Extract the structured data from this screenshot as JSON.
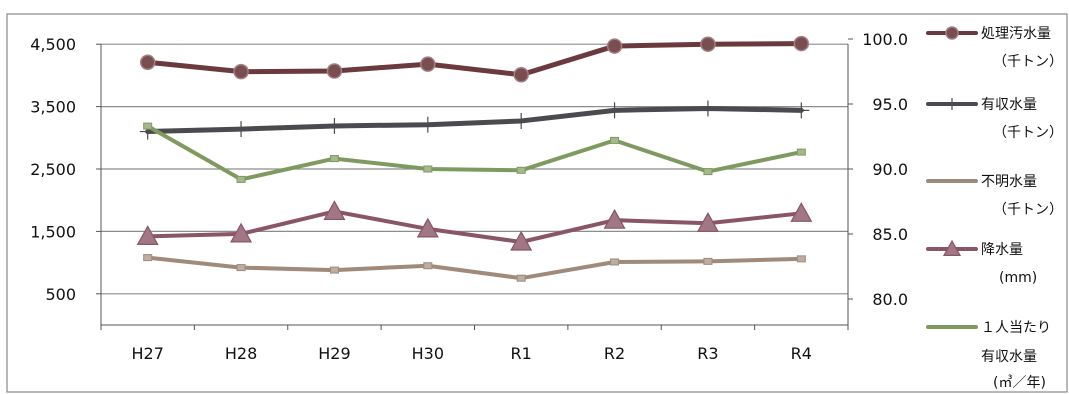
{
  "chart_data": {
    "type": "line",
    "categories": [
      "H27",
      "H28",
      "H29",
      "H30",
      "R1",
      "R2",
      "R3",
      "R4"
    ],
    "y_left": {
      "ticks": [
        "500",
        "1,500",
        "2,500",
        "3,500",
        "4,500"
      ],
      "ylim": [
        0,
        5000
      ]
    },
    "y_right": {
      "ticks": [
        "80.0",
        "85.0",
        "90.0",
        "95.0",
        "100.0"
      ],
      "ylim": [
        78.0,
        102.0
      ]
    },
    "grid": {
      "horizontal": true,
      "vertical": false
    },
    "legend_position": "right",
    "series": [
      {
        "name": "処理汚水量",
        "unit": "（千トン）",
        "axis": "left",
        "marker": "circle",
        "color": "#6b3a3e",
        "values": [
          4210,
          4060,
          4070,
          4180,
          4010,
          4470,
          4500,
          4510
        ]
      },
      {
        "name": "有収水量",
        "unit": "（千トン）",
        "axis": "left",
        "marker": "plus",
        "color": "#4b4b4f",
        "values": [
          3100,
          3140,
          3190,
          3210,
          3270,
          3440,
          3470,
          3440
        ]
      },
      {
        "name": "不明水量",
        "unit": "（千トン）",
        "axis": "left",
        "marker": "dash",
        "color": "#a08a7a",
        "values": [
          1080,
          920,
          880,
          950,
          750,
          1010,
          1020,
          1060
        ]
      },
      {
        "name": "降水量",
        "unit": "(mm)",
        "axis": "left",
        "marker": "triangle",
        "color": "#8a5566",
        "values": [
          1420,
          1460,
          1820,
          1540,
          1330,
          1680,
          1630,
          1790
        ]
      },
      {
        "name": "１人当たり",
        "name_line2": "有収水量",
        "unit": "(㎥／年)",
        "axis": "right",
        "marker": "dash",
        "color": "#7f9a5e",
        "values": [
          93.3,
          89.2,
          90.8,
          90.0,
          89.9,
          92.2,
          89.8,
          91.3
        ]
      }
    ]
  }
}
